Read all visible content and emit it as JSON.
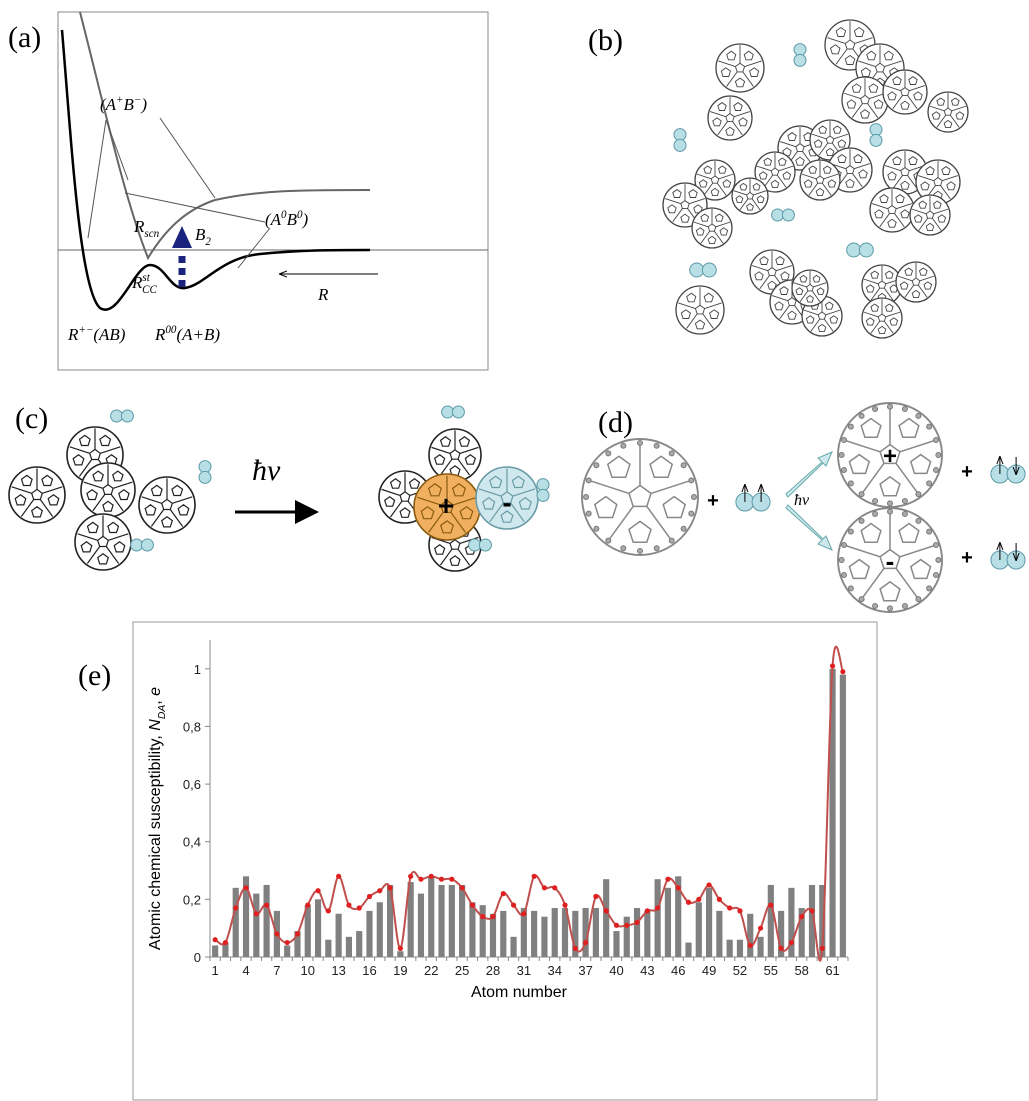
{
  "panel_a": {
    "label": "(a)",
    "ionic_state": [
      {
        "text": "(A"
      },
      {
        "text": "+",
        "style": "sup"
      },
      {
        "text": "B"
      },
      {
        "text": "−",
        "style": "sup"
      },
      {
        "text": ")"
      }
    ],
    "neutral_state": [
      {
        "text": "(A"
      },
      {
        "text": "0",
        "style": "sup"
      },
      {
        "text": "B"
      },
      {
        "text": "0",
        "style": "sup"
      },
      {
        "text": ")"
      }
    ],
    "r_scn": [
      {
        "text": "R"
      },
      {
        "text": "scn",
        "style": "sub"
      }
    ],
    "barrier": [
      {
        "text": "B"
      },
      {
        "text": "2",
        "style": "sub"
      }
    ],
    "r_cc": [
      {
        "text": "R"
      },
      {
        "text": "st",
        "style": "sup"
      },
      {
        "text": "CC",
        "style": "sub"
      }
    ],
    "r_axis": [
      {
        "text": "R"
      }
    ],
    "r_ionic_min": [
      {
        "text": "R"
      },
      {
        "text": "+−",
        "style": "sup"
      },
      {
        "text": "(AB)"
      }
    ],
    "r_neutral": [
      {
        "text": "R"
      },
      {
        "text": "00",
        "style": "sup"
      },
      {
        "text": "(A+B)"
      }
    ]
  },
  "panel_b": {
    "label": "(b)"
  },
  "panel_c": {
    "label": "(c)",
    "photon": "ħν",
    "cation_sign": "+",
    "anion_sign": "-"
  },
  "panel_d": {
    "label": "(d)",
    "photon": "ħν",
    "plus_1": "+",
    "plus_2": "+",
    "plus_3": "+",
    "cation_sign": "+",
    "anion_sign": "-"
  },
  "panel_e": {
    "label": "(e)"
  },
  "chart_data": {
    "type": "bar",
    "ylabel": [
      {
        "text": "Atomic chemical susceptibility, "
      },
      {
        "text": "N",
        "style": "italic"
      },
      {
        "text": "DA",
        "style": "sub-italic"
      },
      {
        "text": ", "
      },
      {
        "text": "e",
        "style": "italic"
      }
    ],
    "xlabel": "Atom number",
    "categories": [
      "1",
      null,
      null,
      "4",
      null,
      null,
      "7",
      null,
      null,
      "10",
      null,
      null,
      "13",
      null,
      null,
      "16",
      null,
      null,
      "19",
      null,
      null,
      "22",
      null,
      null,
      "25",
      null,
      null,
      "28",
      null,
      null,
      "31",
      null,
      null,
      "34",
      null,
      null,
      "37",
      null,
      null,
      "40",
      null,
      null,
      "43",
      null,
      null,
      "46",
      null,
      null,
      "49",
      null,
      null,
      "52",
      null,
      null,
      "55",
      null,
      null,
      "58",
      null,
      null,
      "61",
      null
    ],
    "series": [
      {
        "type": "bar",
        "color": "#808080",
        "values": [
          0.04,
          0.05,
          0.24,
          0.28,
          0.22,
          0.25,
          0.16,
          0.04,
          0.09,
          0.18,
          0.2,
          0.06,
          0.15,
          0.07,
          0.09,
          0.16,
          0.19,
          0.25,
          0.02,
          0.26,
          0.22,
          0.28,
          0.25,
          0.25,
          0.25,
          0.19,
          0.18,
          0.15,
          0.16,
          0.07,
          0.17,
          0.16,
          0.14,
          0.17,
          0.17,
          0.16,
          0.17,
          0.17,
          0.27,
          0.09,
          0.14,
          0.17,
          0.16,
          0.27,
          0.24,
          0.28,
          0.05,
          0.19,
          0.24,
          0.16,
          0.06,
          0.06,
          0.15,
          0.07,
          0.25,
          0.16,
          0.24,
          0.17,
          0.25,
          0.25,
          1.0,
          0.98
        ]
      },
      {
        "type": "line",
        "color": "#c0504d",
        "values": [
          0.06,
          0.05,
          0.17,
          0.24,
          0.15,
          0.18,
          0.08,
          0.05,
          0.08,
          0.18,
          0.23,
          0.16,
          0.28,
          0.18,
          0.17,
          0.21,
          0.23,
          0.24,
          0.03,
          0.28,
          0.27,
          0.28,
          0.27,
          0.27,
          0.24,
          0.18,
          0.14,
          0.14,
          0.22,
          0.18,
          0.15,
          0.28,
          0.24,
          0.24,
          0.18,
          0.03,
          0.05,
          0.21,
          0.16,
          0.11,
          0.11,
          0.12,
          0.16,
          0.17,
          0.27,
          0.24,
          0.19,
          0.2,
          0.25,
          0.2,
          0.17,
          0.16,
          0.04,
          0.1,
          0.18,
          0.03,
          0.05,
          0.14,
          0.16,
          0.03,
          1.01,
          0.99
        ]
      }
    ],
    "ylim": [
      0,
      1.1
    ],
    "yticks": [
      0,
      {
        "value": 0.2,
        "label": "0,2"
      },
      {
        "value": 0.4,
        "label": "0,4"
      },
      {
        "value": 0.6,
        "label": "0,6"
      },
      {
        "value": 0.8,
        "label": "0,8"
      },
      1
    ]
  }
}
